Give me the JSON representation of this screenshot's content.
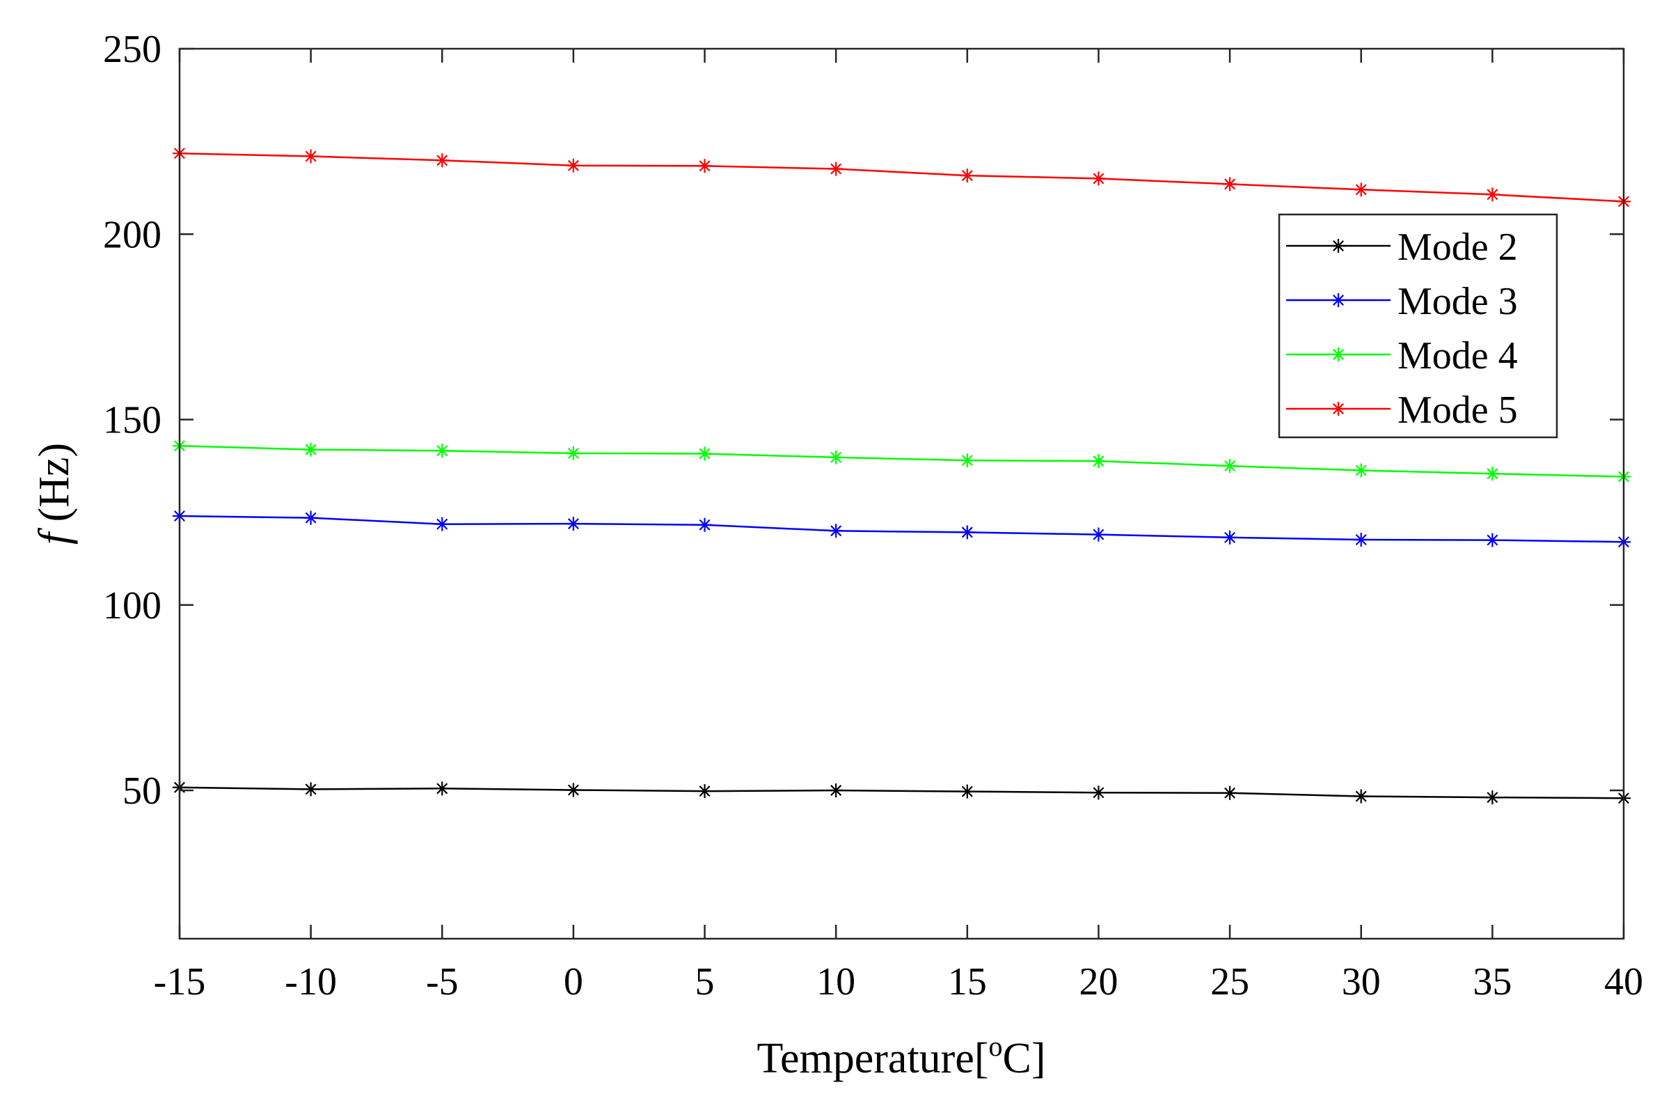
{
  "chart_data": {
    "type": "line",
    "title": "",
    "xlabel": "Temperature[",
    "xlabel_sup": "o",
    "xlabel_end": "C]",
    "ylabel_italic": "f",
    "ylabel_rest": " (Hz)",
    "x": [
      -15,
      -10,
      -5,
      0,
      5,
      10,
      15,
      20,
      25,
      30,
      35,
      40
    ],
    "xlim": [
      -15,
      40
    ],
    "ylim": [
      10,
      250
    ],
    "xticks": [
      -15,
      -10,
      -5,
      0,
      5,
      10,
      15,
      20,
      25,
      30,
      35,
      40
    ],
    "yticks": [
      50,
      100,
      150,
      200,
      250
    ],
    "grid": false,
    "legend_position": "upper-right",
    "marker": "asterisk",
    "series": [
      {
        "name": "Mode 2",
        "color": "#000000",
        "values": [
          50.8,
          50.3,
          50.5,
          50.1,
          49.8,
          50.0,
          49.7,
          49.4,
          49.3,
          48.4,
          48.1,
          47.9
        ]
      },
      {
        "name": "Mode 3",
        "color": "#0000ff",
        "values": [
          124.0,
          123.5,
          121.8,
          121.9,
          121.6,
          120.0,
          119.6,
          119.0,
          118.2,
          117.6,
          117.5,
          117.0
        ]
      },
      {
        "name": "Mode 4",
        "color": "#00ff00",
        "values": [
          142.9,
          141.9,
          141.6,
          140.9,
          140.8,
          139.8,
          139.0,
          138.8,
          137.5,
          136.3,
          135.4,
          134.6
        ]
      },
      {
        "name": "Mode 5",
        "color": "#ff0000",
        "values": [
          221.8,
          221.0,
          219.9,
          218.5,
          218.4,
          217.6,
          215.8,
          215.0,
          213.5,
          212.0,
          210.7,
          208.8
        ]
      }
    ]
  }
}
